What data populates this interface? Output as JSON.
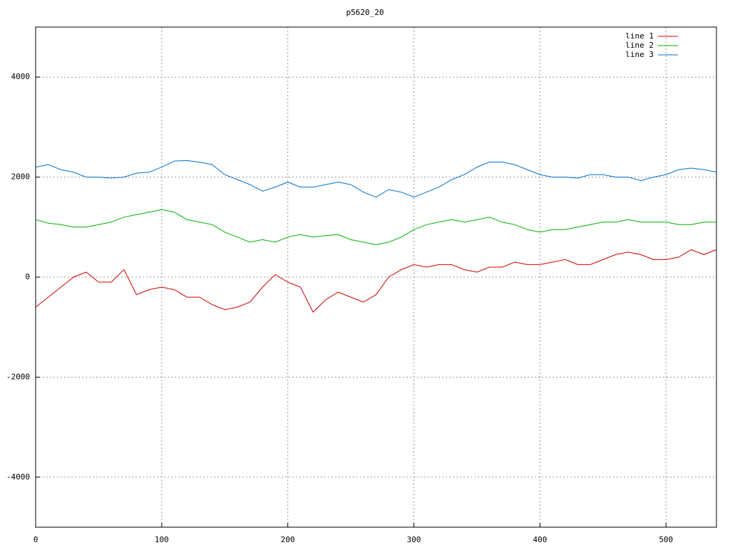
{
  "chart_data": {
    "type": "line",
    "title": "p5620_20",
    "x": [
      0,
      10,
      20,
      30,
      40,
      50,
      60,
      70,
      80,
      90,
      100,
      110,
      120,
      130,
      140,
      150,
      160,
      170,
      180,
      190,
      200,
      210,
      220,
      230,
      240,
      250,
      260,
      270,
      280,
      290,
      300,
      310,
      320,
      330,
      340,
      350,
      360,
      370,
      380,
      390,
      400,
      410,
      420,
      430,
      440,
      450,
      460,
      470,
      480,
      490,
      500,
      510,
      520,
      530,
      540
    ],
    "series": [
      {
        "name": "line 1",
        "color": "#d00000",
        "values": [
          -600,
          -400,
          -200,
          0,
          100,
          -100,
          -100,
          150,
          -350,
          -250,
          -200,
          -250,
          -400,
          -400,
          -550,
          -650,
          -600,
          -500,
          -200,
          50,
          -100,
          -200,
          -700,
          -450,
          -300,
          -400,
          -500,
          -350,
          0,
          150,
          250,
          200,
          250,
          250,
          150,
          100,
          200,
          200,
          300,
          250,
          250,
          300,
          350,
          250,
          250,
          350,
          450,
          500,
          450,
          350,
          350,
          400,
          550,
          450,
          550
        ]
      },
      {
        "name": "line 2",
        "color": "#00b000",
        "values": [
          1150,
          1080,
          1050,
          1000,
          1000,
          1050,
          1100,
          1200,
          1250,
          1300,
          1350,
          1300,
          1150,
          1100,
          1050,
          900,
          800,
          700,
          750,
          700,
          800,
          850,
          800,
          830,
          850,
          750,
          700,
          650,
          700,
          800,
          950,
          1050,
          1100,
          1150,
          1100,
          1150,
          1200,
          1100,
          1050,
          950,
          900,
          950,
          950,
          1000,
          1050,
          1100,
          1100,
          1150,
          1100,
          1100,
          1100,
          1050,
          1050,
          1100,
          1100
        ]
      },
      {
        "name": "line 3",
        "color": "#0070d0",
        "values": [
          2200,
          2250,
          2150,
          2100,
          2000,
          2000,
          1980,
          2000,
          2080,
          2100,
          2200,
          2320,
          2330,
          2300,
          2250,
          2050,
          1950,
          1850,
          1720,
          1800,
          1900,
          1800,
          1800,
          1850,
          1900,
          1850,
          1700,
          1600,
          1750,
          1700,
          1600,
          1700,
          1800,
          1950,
          2050,
          2200,
          2300,
          2300,
          2250,
          2150,
          2050,
          2000,
          2000,
          1980,
          2050,
          2050,
          2000,
          2000,
          1930,
          2000,
          2050,
          2150,
          2180,
          2150,
          2100
        ]
      }
    ],
    "xlim": [
      0,
      540
    ],
    "ylim": [
      -5000,
      5000
    ],
    "xticks": [
      0,
      100,
      200,
      300,
      400,
      500
    ],
    "yticks": [
      -4000,
      -2000,
      0,
      2000,
      4000
    ],
    "grid": true,
    "legend": "top-right"
  }
}
